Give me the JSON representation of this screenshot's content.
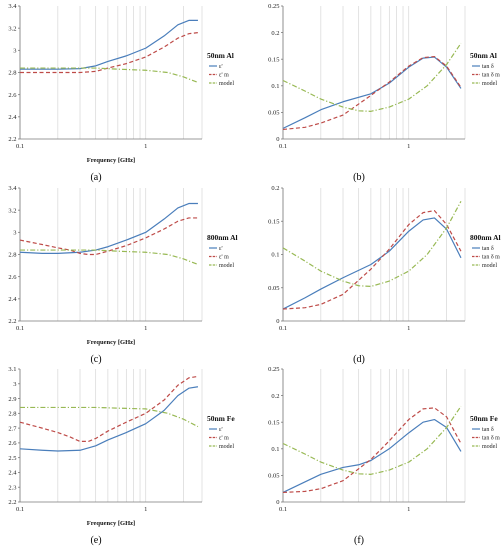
{
  "colors": {
    "measured": "#4a7ebb",
    "measured_m": "#be4b48",
    "model": "#98b954"
  },
  "chart_data": [
    {
      "type": "line",
      "panel_label": "(a)",
      "side_label": "50nm Al",
      "xlabel": "Frequency [GHz]",
      "x_scale": "log",
      "xlim": [
        0.1,
        2.8
      ],
      "x_ticks": [
        "0.1",
        "1"
      ],
      "ylim": [
        2.2,
        3.4
      ],
      "y_ticks": [
        "2.2",
        "2.4",
        "2.6",
        "2.8",
        "3",
        "3.2",
        "3.4"
      ],
      "legend_position": "right",
      "series": [
        {
          "name": "ε'",
          "style": "solid",
          "color": "#4a7ebb",
          "x": [
            0.1,
            0.15,
            0.2,
            0.3,
            0.4,
            0.5,
            0.7,
            1.0,
            1.4,
            1.8,
            2.2,
            2.6
          ],
          "y": [
            2.83,
            2.83,
            2.83,
            2.835,
            2.86,
            2.9,
            2.95,
            3.02,
            3.13,
            3.23,
            3.27,
            3.27
          ]
        },
        {
          "name": "ε' m",
          "style": "dash",
          "color": "#be4b48",
          "x": [
            0.1,
            0.15,
            0.2,
            0.3,
            0.4,
            0.5,
            0.7,
            1.0,
            1.4,
            1.8,
            2.2,
            2.6
          ],
          "y": [
            2.8,
            2.8,
            2.8,
            2.8,
            2.81,
            2.84,
            2.88,
            2.94,
            3.03,
            3.11,
            3.15,
            3.16
          ]
        },
        {
          "name": "model",
          "style": "dashdot",
          "color": "#98b954",
          "x": [
            0.1,
            0.2,
            0.4,
            0.6,
            1.0,
            1.5,
            2.0,
            2.6
          ],
          "y": [
            2.84,
            2.84,
            2.84,
            2.83,
            2.82,
            2.8,
            2.76,
            2.71
          ]
        }
      ]
    },
    {
      "type": "line",
      "panel_label": "(b)",
      "side_label": "50nm Al",
      "xlabel": "",
      "x_scale": "log",
      "xlim": [
        0.1,
        2.8
      ],
      "x_ticks": [
        "0.1",
        "1"
      ],
      "ylim": [
        0,
        0.25
      ],
      "y_ticks": [
        "0",
        "0.05",
        "0.1",
        "0.15",
        "0.2",
        "0.25"
      ],
      "legend_position": "right",
      "series": [
        {
          "name": "tan δ",
          "style": "solid",
          "color": "#4a7ebb",
          "x": [
            0.1,
            0.15,
            0.2,
            0.3,
            0.5,
            0.7,
            1.0,
            1.3,
            1.6,
            2.0,
            2.6
          ],
          "y": [
            0.02,
            0.04,
            0.055,
            0.07,
            0.085,
            0.105,
            0.135,
            0.152,
            0.154,
            0.135,
            0.095
          ]
        },
        {
          "name": "tan δ m",
          "style": "dash",
          "color": "#be4b48",
          "x": [
            0.1,
            0.15,
            0.2,
            0.3,
            0.5,
            0.7,
            1.0,
            1.3,
            1.6,
            2.0,
            2.6
          ],
          "y": [
            0.018,
            0.022,
            0.03,
            0.045,
            0.082,
            0.107,
            0.137,
            0.153,
            0.155,
            0.137,
            0.097
          ]
        },
        {
          "name": "model",
          "style": "dashdot",
          "color": "#98b954",
          "x": [
            0.1,
            0.15,
            0.2,
            0.3,
            0.4,
            0.5,
            0.7,
            1.0,
            1.4,
            2.0,
            2.6
          ],
          "y": [
            0.11,
            0.09,
            0.075,
            0.06,
            0.053,
            0.052,
            0.06,
            0.075,
            0.1,
            0.14,
            0.18
          ]
        }
      ]
    },
    {
      "type": "line",
      "panel_label": "(c)",
      "side_label": "800nm Al",
      "xlabel": "Frequency [GHz]",
      "x_scale": "log",
      "xlim": [
        0.1,
        2.8
      ],
      "x_ticks": [
        "0.1",
        "1"
      ],
      "ylim": [
        2.2,
        3.4
      ],
      "y_ticks": [
        "2.2",
        "2.4",
        "2.6",
        "2.8",
        "3",
        "3.2",
        "3.4"
      ],
      "legend_position": "right",
      "series": [
        {
          "name": "ε'",
          "style": "solid",
          "color": "#4a7ebb",
          "x": [
            0.1,
            0.15,
            0.2,
            0.3,
            0.4,
            0.5,
            0.7,
            1.0,
            1.4,
            1.8,
            2.2,
            2.6
          ],
          "y": [
            2.82,
            2.81,
            2.81,
            2.82,
            2.84,
            2.87,
            2.93,
            3.0,
            3.12,
            3.22,
            3.26,
            3.26
          ]
        },
        {
          "name": "ε' m",
          "style": "dash",
          "color": "#be4b48",
          "x": [
            0.1,
            0.15,
            0.2,
            0.25,
            0.3,
            0.35,
            0.4,
            0.5,
            0.7,
            1.0,
            1.4,
            1.8,
            2.2,
            2.6
          ],
          "y": [
            2.93,
            2.89,
            2.86,
            2.84,
            2.81,
            2.8,
            2.8,
            2.83,
            2.88,
            2.95,
            3.03,
            3.1,
            3.13,
            3.13
          ]
        },
        {
          "name": "model",
          "style": "dashdot",
          "color": "#98b954",
          "x": [
            0.1,
            0.2,
            0.4,
            0.6,
            1.0,
            1.5,
            2.0,
            2.6
          ],
          "y": [
            2.84,
            2.84,
            2.84,
            2.83,
            2.82,
            2.8,
            2.76,
            2.71
          ]
        }
      ]
    },
    {
      "type": "line",
      "panel_label": "(d)",
      "side_label": "800nm Al",
      "xlabel": "",
      "x_scale": "log",
      "xlim": [
        0.1,
        2.8
      ],
      "x_ticks": [
        "0.1",
        "1"
      ],
      "ylim": [
        0,
        0.2
      ],
      "y_ticks": [
        "0",
        "0.05",
        "0.1",
        "0.15",
        "0.2"
      ],
      "legend_position": "right",
      "series": [
        {
          "name": "tan δ",
          "style": "solid",
          "color": "#4a7ebb",
          "x": [
            0.1,
            0.15,
            0.2,
            0.3,
            0.5,
            0.7,
            1.0,
            1.3,
            1.6,
            2.0,
            2.6
          ],
          "y": [
            0.018,
            0.035,
            0.048,
            0.065,
            0.085,
            0.105,
            0.135,
            0.152,
            0.155,
            0.138,
            0.095
          ]
        },
        {
          "name": "tan δ m",
          "style": "dash",
          "color": "#be4b48",
          "x": [
            0.1,
            0.15,
            0.2,
            0.3,
            0.5,
            0.7,
            1.0,
            1.3,
            1.6,
            2.0,
            2.6
          ],
          "y": [
            0.018,
            0.02,
            0.025,
            0.04,
            0.078,
            0.108,
            0.145,
            0.163,
            0.166,
            0.145,
            0.105
          ]
        },
        {
          "name": "model",
          "style": "dashdot",
          "color": "#98b954",
          "x": [
            0.1,
            0.15,
            0.2,
            0.3,
            0.4,
            0.5,
            0.7,
            1.0,
            1.4,
            2.0,
            2.6
          ],
          "y": [
            0.11,
            0.09,
            0.075,
            0.06,
            0.053,
            0.052,
            0.06,
            0.075,
            0.1,
            0.14,
            0.18
          ]
        }
      ]
    },
    {
      "type": "line",
      "panel_label": "(e)",
      "side_label": "50nm Fe",
      "xlabel": "Frequency [GHz]",
      "x_scale": "log",
      "xlim": [
        0.1,
        2.8
      ],
      "x_ticks": [
        "0.1",
        "1"
      ],
      "ylim": [
        2.2,
        3.1
      ],
      "y_ticks": [
        "2.2",
        "2.3",
        "2.4",
        "2.5",
        "2.6",
        "2.7",
        "2.8",
        "2.9",
        "3",
        "3.1"
      ],
      "legend_position": "right",
      "series": [
        {
          "name": "ε'",
          "style": "solid",
          "color": "#4a7ebb",
          "x": [
            0.1,
            0.15,
            0.2,
            0.3,
            0.4,
            0.5,
            0.7,
            1.0,
            1.4,
            1.8,
            2.2,
            2.6
          ],
          "y": [
            2.56,
            2.55,
            2.545,
            2.55,
            2.58,
            2.62,
            2.67,
            2.73,
            2.82,
            2.92,
            2.97,
            2.98
          ]
        },
        {
          "name": "ε' m",
          "style": "dash",
          "color": "#be4b48",
          "x": [
            0.1,
            0.15,
            0.2,
            0.25,
            0.3,
            0.35,
            0.4,
            0.5,
            0.7,
            1.0,
            1.4,
            1.8,
            2.2,
            2.6
          ],
          "y": [
            2.74,
            2.7,
            2.67,
            2.64,
            2.61,
            2.61,
            2.63,
            2.68,
            2.74,
            2.8,
            2.89,
            2.99,
            3.04,
            3.05
          ]
        },
        {
          "name": "model",
          "style": "dashdot",
          "color": "#98b954",
          "x": [
            0.1,
            0.2,
            0.4,
            0.6,
            1.0,
            1.5,
            2.0,
            2.6
          ],
          "y": [
            2.84,
            2.84,
            2.84,
            2.835,
            2.83,
            2.8,
            2.76,
            2.71
          ]
        }
      ]
    },
    {
      "type": "line",
      "panel_label": "(f)",
      "side_label": "50nm Fe",
      "xlabel": "",
      "x_scale": "log",
      "xlim": [
        0.1,
        2.8
      ],
      "x_ticks": [
        "0.1",
        "1"
      ],
      "ylim": [
        0,
        0.25
      ],
      "y_ticks": [
        "0",
        "0.05",
        "0.1",
        "0.15",
        "0.2",
        "0.25"
      ],
      "legend_position": "right",
      "series": [
        {
          "name": "tan δ",
          "style": "solid",
          "color": "#4a7ebb",
          "x": [
            0.1,
            0.15,
            0.2,
            0.3,
            0.4,
            0.5,
            0.7,
            1.0,
            1.3,
            1.6,
            2.0,
            2.6
          ],
          "y": [
            0.018,
            0.038,
            0.052,
            0.065,
            0.07,
            0.078,
            0.1,
            0.13,
            0.15,
            0.155,
            0.14,
            0.095
          ]
        },
        {
          "name": "tan δ m",
          "style": "dash",
          "color": "#be4b48",
          "x": [
            0.1,
            0.15,
            0.2,
            0.3,
            0.5,
            0.7,
            1.0,
            1.3,
            1.6,
            2.0,
            2.6
          ],
          "y": [
            0.018,
            0.02,
            0.025,
            0.04,
            0.08,
            0.115,
            0.155,
            0.175,
            0.177,
            0.16,
            0.11
          ]
        },
        {
          "name": "model",
          "style": "dashdot",
          "color": "#98b954",
          "x": [
            0.1,
            0.15,
            0.2,
            0.3,
            0.4,
            0.5,
            0.7,
            1.0,
            1.4,
            2.0,
            2.6
          ],
          "y": [
            0.11,
            0.09,
            0.075,
            0.06,
            0.053,
            0.052,
            0.06,
            0.075,
            0.1,
            0.14,
            0.18
          ]
        }
      ]
    }
  ]
}
